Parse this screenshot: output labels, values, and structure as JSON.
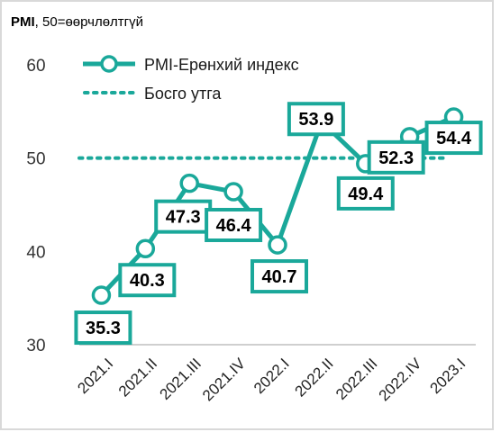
{
  "header": {
    "title_bold": "PMI",
    "title_rest": ", 50=өөрчлөлтгүй"
  },
  "colors": {
    "series": "#1aa89a",
    "axis": "#bfbfbf"
  },
  "chart_data": {
    "type": "line",
    "x": [
      "2021.I",
      "2021.II",
      "2021.III",
      "2021.IV",
      "2022.I",
      "2022.II",
      "2022.III",
      "2022.IV",
      "2023.I"
    ],
    "series": [
      {
        "name": "PMI-Ерөнхий индекс",
        "values": [
          35.3,
          40.3,
          47.3,
          46.4,
          40.7,
          53.9,
          49.4,
          52.3,
          54.4
        ]
      },
      {
        "name": "Босго утга",
        "values": [
          50,
          50,
          50,
          50,
          50,
          50,
          50,
          50,
          50
        ]
      }
    ],
    "data_labels": [
      "35.3",
      "40.3",
      "47.3",
      "46.4",
      "40.7",
      "53.9",
      "49.4",
      "52.3",
      "54.4"
    ],
    "yticks": [
      "30",
      "40",
      "50",
      "60"
    ],
    "ylim": [
      30,
      60
    ],
    "legend": "top-left"
  }
}
